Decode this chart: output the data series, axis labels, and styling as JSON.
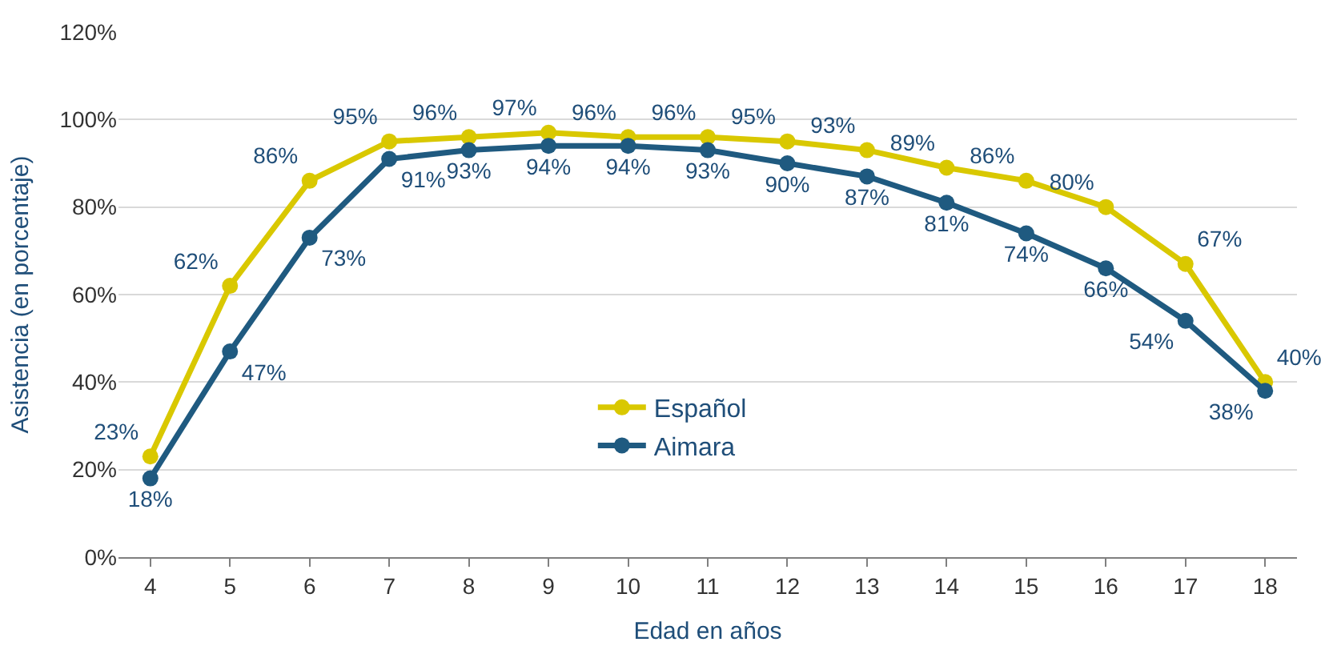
{
  "chart_data": {
    "type": "line",
    "xlabel": "Edad en años",
    "ylabel": "Asistencia (en porcentaje)",
    "x": [
      4,
      5,
      6,
      7,
      8,
      9,
      10,
      11,
      12,
      13,
      14,
      15,
      16,
      17,
      18
    ],
    "xlim": [
      3.6,
      18.4
    ],
    "xticks": [
      4,
      5,
      6,
      7,
      8,
      9,
      10,
      11,
      12,
      13,
      14,
      15,
      16,
      17,
      18
    ],
    "ylim": [
      0,
      120
    ],
    "yticks": [
      {
        "value": 0,
        "label": "0%"
      },
      {
        "value": 20,
        "label": "20%"
      },
      {
        "value": 40,
        "label": "40%"
      },
      {
        "value": 60,
        "label": "60%"
      },
      {
        "value": 80,
        "label": "80%"
      },
      {
        "value": 100,
        "label": "100%"
      },
      {
        "value": 120,
        "label": "120%"
      }
    ],
    "grid": "y",
    "legend": "bottom",
    "marker": "circle",
    "line_style": "solid",
    "series": [
      {
        "name": "Español",
        "color": "#d9c800",
        "values": [
          23,
          62,
          86,
          95,
          96,
          97,
          96,
          96,
          95,
          93,
          89,
          86,
          80,
          67,
          40
        ],
        "value_labels": [
          "23%",
          "62%",
          "86%",
          "95%",
          "96%",
          "97%",
          "96%",
          "96%",
          "95%",
          "93%",
          "89%",
          "86%",
          "80%",
          "67%",
          "40%"
        ]
      },
      {
        "name": "Aimara",
        "color": "#1f5a80",
        "values": [
          18,
          47,
          73,
          91,
          93,
          94,
          94,
          93,
          90,
          87,
          81,
          74,
          66,
          54,
          38
        ],
        "value_labels": [
          "18%",
          "47%",
          "73%",
          "91%",
          "93%",
          "94%",
          "94%",
          "93%",
          "90%",
          "87%",
          "81%",
          "74%",
          "66%",
          "54%",
          "38%"
        ]
      }
    ]
  }
}
